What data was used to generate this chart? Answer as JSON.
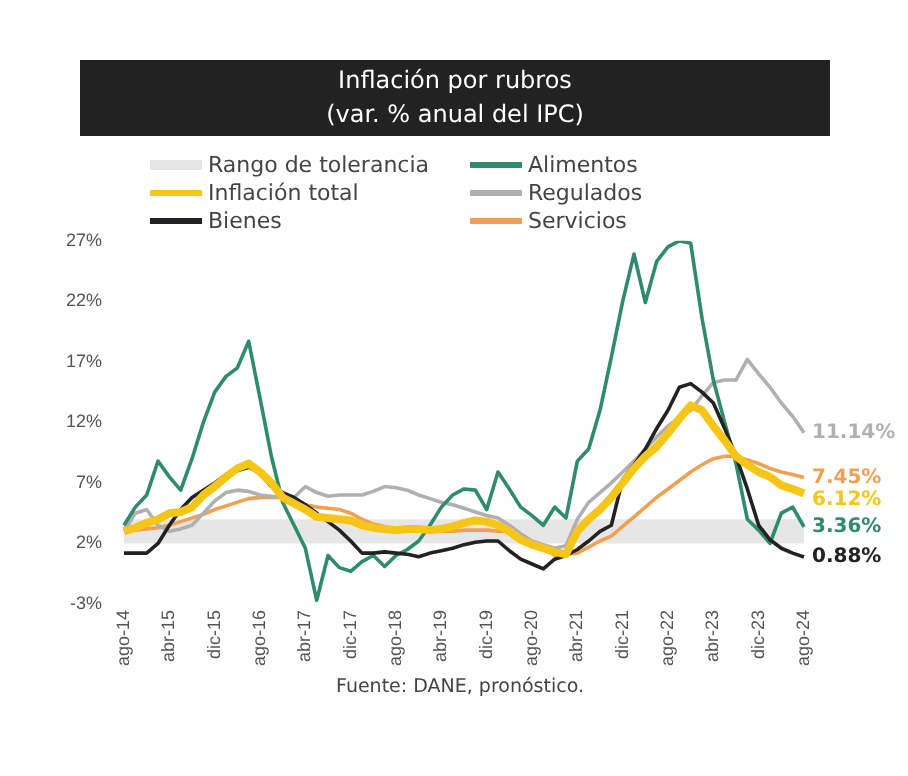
{
  "chart_data": {
    "type": "line",
    "title": "Inflación por rubros",
    "subtitle": "(var. % anual del IPC)",
    "categories": [
      "ago-14",
      null,
      null,
      null,
      "abr-15",
      null,
      null,
      null,
      "dic-15",
      null,
      null,
      null,
      "ago-16",
      null,
      null,
      null,
      "abr-17",
      null,
      null,
      null,
      "dic-17",
      null,
      null,
      null,
      "ago-18",
      null,
      null,
      null,
      "abr-19",
      null,
      null,
      null,
      "dic-19",
      null,
      null,
      null,
      "ago-20",
      null,
      null,
      null,
      "abr-21",
      null,
      null,
      null,
      "dic-21",
      null,
      null,
      null,
      "ago-22",
      null,
      null,
      null,
      "abr-23",
      null,
      null,
      null,
      "dic-23",
      null,
      null,
      null,
      "ago-24"
    ],
    "series": [
      {
        "name": "Inflación total",
        "color": "#f5c518",
        "values": [
          3,
          3.3,
          3.7,
          4,
          4.5,
          4.6,
          5,
          6,
          6.7,
          7.5,
          8.2,
          8.6,
          7.9,
          7,
          5.8,
          5.3,
          4.8,
          4.2,
          4.1,
          4,
          3.9,
          3.5,
          3.3,
          3.2,
          3.1,
          3.2,
          3.2,
          3.1,
          3.2,
          3.4,
          3.7,
          3.9,
          3.8,
          3.5,
          3,
          2.3,
          1.9,
          1.6,
          1.3,
          1.1,
          3,
          4,
          4.8,
          5.8,
          7,
          8.2,
          9.2,
          10,
          11.1,
          12.3,
          13.4,
          13,
          11.7,
          10.5,
          9.2,
          8.5,
          7.9,
          7.5,
          6.8,
          6.5,
          6.12
        ],
        "value_labels": [
          null,
          null,
          null,
          null,
          null,
          null,
          null,
          null,
          null,
          null,
          null,
          null,
          null,
          null,
          null,
          null,
          null,
          null,
          null,
          null,
          null,
          null,
          null,
          null,
          null,
          null,
          null,
          null,
          null,
          null,
          null,
          null,
          null,
          null,
          null,
          null,
          null,
          null,
          null,
          null,
          null,
          null,
          null,
          null,
          null,
          null,
          null,
          null,
          null,
          null,
          null,
          null,
          null,
          null,
          null,
          null,
          null,
          null,
          null,
          null,
          "6.12%"
        ]
      },
      {
        "name": "Bienes",
        "color": "#222222",
        "values": [
          1.2,
          1.2,
          1.2,
          2,
          3.5,
          4.8,
          5.8,
          6.4,
          7,
          7.7,
          8,
          8.3,
          7.8,
          6.7,
          6.2,
          5.8,
          5.2,
          4.5,
          3.8,
          3.1,
          2.2,
          1.2,
          1.2,
          1.3,
          1.2,
          1.1,
          0.9,
          1.2,
          1.4,
          1.6,
          1.9,
          2.1,
          2.2,
          2.2,
          1.4,
          0.7,
          0.3,
          -0.1,
          0.7,
          1,
          1.5,
          2.2,
          3,
          3.5,
          7.3,
          8.5,
          9.8,
          11.5,
          13,
          14.9,
          15.2,
          14.5,
          13.6,
          11.5,
          9.2,
          6.5,
          3.5,
          2.3,
          1.6,
          1.2,
          0.88
        ],
        "value_labels": [
          null,
          null,
          null,
          null,
          null,
          null,
          null,
          null,
          null,
          null,
          null,
          null,
          null,
          null,
          null,
          null,
          null,
          null,
          null,
          null,
          null,
          null,
          null,
          null,
          null,
          null,
          null,
          null,
          null,
          null,
          null,
          null,
          null,
          null,
          null,
          null,
          null,
          null,
          null,
          null,
          null,
          null,
          null,
          null,
          null,
          null,
          null,
          null,
          null,
          null,
          null,
          null,
          null,
          null,
          null,
          null,
          null,
          null,
          null,
          null,
          "0.88%"
        ]
      },
      {
        "name": "Alimentos",
        "color": "#2e8b6b",
        "values": [
          3.5,
          5,
          6,
          8.8,
          7.5,
          6.4,
          9,
          12,
          14.5,
          15.8,
          16.5,
          18.7,
          14,
          9.2,
          5.4,
          3.5,
          1.6,
          -2.7,
          1,
          0,
          -0.3,
          0.5,
          1,
          0.1,
          1,
          1.5,
          2.2,
          3.5,
          5,
          6,
          6.5,
          6.4,
          4.8,
          7.9,
          6.5,
          5,
          4.3,
          3.5,
          5,
          4.1,
          8.8,
          9.8,
          13,
          17.4,
          22,
          25.9,
          21.9,
          25.3,
          26.5,
          27,
          26.8,
          20.6,
          15.5,
          12,
          8.6,
          4,
          3.1,
          2,
          4.5,
          5,
          3.36
        ],
        "value_labels": [
          null,
          null,
          null,
          null,
          null,
          null,
          null,
          null,
          null,
          null,
          null,
          null,
          null,
          null,
          null,
          null,
          null,
          null,
          null,
          null,
          null,
          null,
          null,
          null,
          null,
          null,
          null,
          null,
          null,
          null,
          null,
          null,
          null,
          null,
          null,
          null,
          null,
          null,
          null,
          null,
          null,
          null,
          null,
          null,
          null,
          null,
          null,
          null,
          null,
          null,
          null,
          null,
          null,
          null,
          null,
          null,
          null,
          null,
          null,
          null,
          "3.36%"
        ]
      },
      {
        "name": "Regulados",
        "color": "#b0b0b0",
        "values": [
          3,
          4.5,
          4.8,
          3.5,
          3,
          3.2,
          3.5,
          4.5,
          5.5,
          6.2,
          6.4,
          6.3,
          6,
          5.9,
          5.8,
          5.8,
          6.7,
          6.2,
          5.9,
          6,
          6,
          6,
          6.3,
          6.7,
          6.6,
          6.4,
          6,
          5.7,
          5.4,
          5.2,
          4.9,
          4.6,
          4.3,
          4.1,
          3.5,
          2.8,
          2.2,
          1.9,
          1.6,
          1.8,
          4,
          5.4,
          6.2,
          7,
          7.9,
          8.8,
          9.8,
          10.8,
          11.7,
          12.4,
          13,
          14.2,
          15.3,
          15.5,
          15.5,
          17.2,
          16,
          14.9,
          13.6,
          12.5,
          11.14
        ],
        "value_labels": [
          null,
          null,
          null,
          null,
          null,
          null,
          null,
          null,
          null,
          null,
          null,
          null,
          null,
          null,
          null,
          null,
          null,
          null,
          null,
          null,
          null,
          null,
          null,
          null,
          null,
          null,
          null,
          null,
          null,
          null,
          null,
          null,
          null,
          null,
          null,
          null,
          null,
          null,
          null,
          null,
          null,
          null,
          null,
          null,
          null,
          null,
          null,
          null,
          null,
          null,
          null,
          null,
          null,
          null,
          null,
          null,
          null,
          null,
          null,
          null,
          "11.14%"
        ]
      },
      {
        "name": "Servicios",
        "color": "#f0a050",
        "values": [
          3,
          3.1,
          3.2,
          3.3,
          3.5,
          3.8,
          4.1,
          4.4,
          4.8,
          5.1,
          5.4,
          5.7,
          5.8,
          5.8,
          5.8,
          5.5,
          5.2,
          5,
          4.9,
          4.8,
          4.5,
          4,
          3.6,
          3.4,
          3.2,
          3.1,
          3,
          3,
          3,
          3,
          3.1,
          3.1,
          3.1,
          3,
          3,
          2.6,
          2.1,
          1.7,
          1,
          1.1,
          1.2,
          1.7,
          2.2,
          2.6,
          3.4,
          4.2,
          5,
          5.8,
          6.5,
          7.2,
          7.9,
          8.5,
          9,
          9.2,
          9.2,
          8.9,
          8.6,
          8.2,
          7.9,
          7.7,
          7.45
        ],
        "value_labels": [
          null,
          null,
          null,
          null,
          null,
          null,
          null,
          null,
          null,
          null,
          null,
          null,
          null,
          null,
          null,
          null,
          null,
          null,
          null,
          null,
          null,
          null,
          null,
          null,
          null,
          null,
          null,
          null,
          null,
          null,
          null,
          null,
          null,
          null,
          null,
          null,
          null,
          null,
          null,
          null,
          null,
          null,
          null,
          null,
          null,
          null,
          null,
          null,
          null,
          null,
          null,
          null,
          null,
          null,
          null,
          null,
          null,
          null,
          null,
          null,
          "7.45%"
        ]
      }
    ],
    "bands": [
      {
        "axis": "y",
        "from": 2,
        "to": 4,
        "label": "Rango de tolerancia",
        "color": "#e6e6e6"
      }
    ],
    "ylim": [
      -3,
      27
    ],
    "yticks": [
      {
        "value": -3,
        "label": "-3%"
      },
      {
        "value": 2,
        "label": "2%"
      },
      {
        "value": 7,
        "label": "7%"
      },
      {
        "value": 12,
        "label": "12%"
      },
      {
        "value": 17,
        "label": "17%"
      },
      {
        "value": 22,
        "label": "22%"
      },
      {
        "value": 27,
        "label": "27%"
      }
    ],
    "grid": false,
    "legend": "top",
    "marker": "none",
    "line_style": "solid",
    "annotations": [
      "Fuente: DANE, pronóstico."
    ]
  }
}
